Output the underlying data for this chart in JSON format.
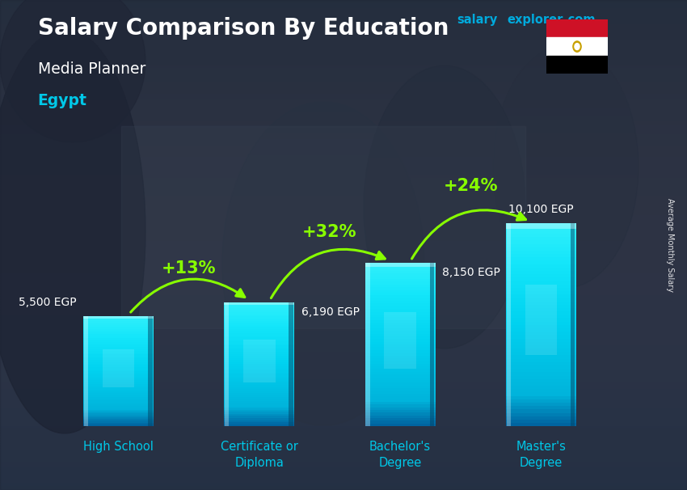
{
  "title": "Salary Comparison By Education",
  "subtitle": "Media Planner",
  "country": "Egypt",
  "watermark_salary": "salary",
  "watermark_explorer": "explorer",
  "watermark_com": ".com",
  "ylabel": "Average Monthly Salary",
  "categories": [
    "High School",
    "Certificate or\nDiploma",
    "Bachelor's\nDegree",
    "Master's\nDegree"
  ],
  "values": [
    5500,
    6190,
    8150,
    10100
  ],
  "value_labels": [
    "5,500 EGP",
    "6,190 EGP",
    "8,150 EGP",
    "10,100 EGP"
  ],
  "pct_labels": [
    "+13%",
    "+32%",
    "+24%"
  ],
  "bar_color_face": "#00c8e8",
  "bar_color_light": "#40e8ff",
  "bar_color_dark": "#006699",
  "arrow_color": "#88ff00",
  "title_color": "#ffffff",
  "subtitle_color": "#ffffff",
  "country_color": "#00c8e8",
  "label_color": "#ffffff",
  "pct_color": "#88ff00",
  "watermark_color": "#00aadd",
  "bg_dark": "#2c3444",
  "bg_mid": "#3d4a5a",
  "figsize": [
    8.5,
    6.06
  ],
  "dpi": 100
}
